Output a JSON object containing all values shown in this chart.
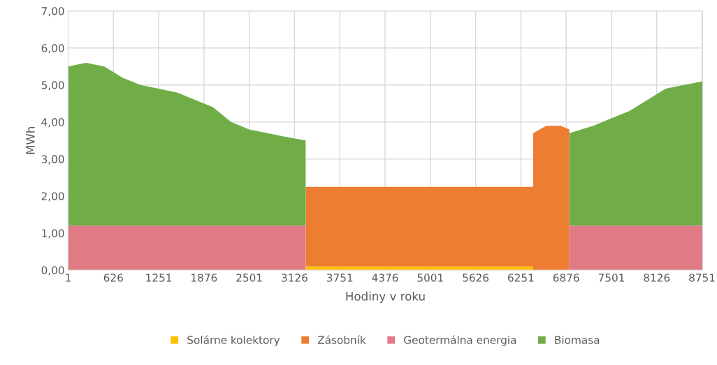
{
  "chart_data": {
    "type": "area",
    "stacked": true,
    "xlabel": "Hodiny v roku",
    "ylabel": "MWh",
    "x": [
      1,
      250,
      500,
      750,
      1000,
      1250,
      1500,
      1750,
      2000,
      2250,
      2500,
      2750,
      3000,
      3280,
      3281,
      4000,
      5000,
      6000,
      6420,
      6421,
      6600,
      6800,
      6920,
      6921,
      7250,
      7500,
      7750,
      8000,
      8250,
      8500,
      8760
    ],
    "series": [
      {
        "name": "Solárne kolektory",
        "color": "#ffc000",
        "values": [
          null,
          null,
          null,
          null,
          null,
          null,
          null,
          null,
          null,
          null,
          null,
          null,
          null,
          null,
          0.1,
          0.1,
          0.1,
          0.1,
          0.1,
          null,
          null,
          null,
          null,
          null,
          null,
          null,
          null,
          null,
          null,
          null,
          null
        ]
      },
      {
        "name": "Zásobník",
        "color": "#ed7d31",
        "values": [
          null,
          null,
          null,
          null,
          null,
          null,
          null,
          null,
          null,
          null,
          null,
          null,
          null,
          null,
          2.15,
          2.15,
          2.15,
          2.15,
          2.15,
          3.7,
          3.9,
          3.9,
          3.8,
          null,
          null,
          null,
          null,
          null,
          null,
          null,
          null
        ]
      },
      {
        "name": "Geotermálna energia",
        "color": "#e07a85",
        "values": [
          1.2,
          1.2,
          1.2,
          1.2,
          1.2,
          1.2,
          1.2,
          1.2,
          1.2,
          1.2,
          1.2,
          1.2,
          1.2,
          1.2,
          null,
          null,
          null,
          null,
          null,
          null,
          null,
          null,
          null,
          1.2,
          1.2,
          1.2,
          1.2,
          1.2,
          1.2,
          1.2,
          1.2
        ]
      },
      {
        "name": "Biomasa",
        "color": "#70ad47",
        "values": [
          4.3,
          4.4,
          4.3,
          4.0,
          3.8,
          3.7,
          3.6,
          3.4,
          3.2,
          2.8,
          2.6,
          2.5,
          2.4,
          2.3,
          null,
          null,
          null,
          null,
          null,
          null,
          null,
          null,
          null,
          2.5,
          2.7,
          2.9,
          3.1,
          3.4,
          3.7,
          3.8,
          3.9
        ]
      }
    ],
    "xlim": [
      1,
      8760
    ],
    "xticks": [
      1,
      626,
      1251,
      1876,
      2501,
      3126,
      3751,
      4376,
      5001,
      5626,
      6251,
      6876,
      7501,
      8126,
      8751
    ],
    "ylim": [
      0,
      7
    ],
    "yticks": [
      {
        "value": 0,
        "label": "0,00"
      },
      {
        "value": 1,
        "label": "1,00"
      },
      {
        "value": 2,
        "label": "2,00"
      },
      {
        "value": 3,
        "label": "3,00"
      },
      {
        "value": 4,
        "label": "4,00"
      },
      {
        "value": 5,
        "label": "5,00"
      },
      {
        "value": 6,
        "label": "6,00"
      },
      {
        "value": 7,
        "label": "7,00"
      }
    ],
    "grid": true,
    "legend": "bottom"
  }
}
